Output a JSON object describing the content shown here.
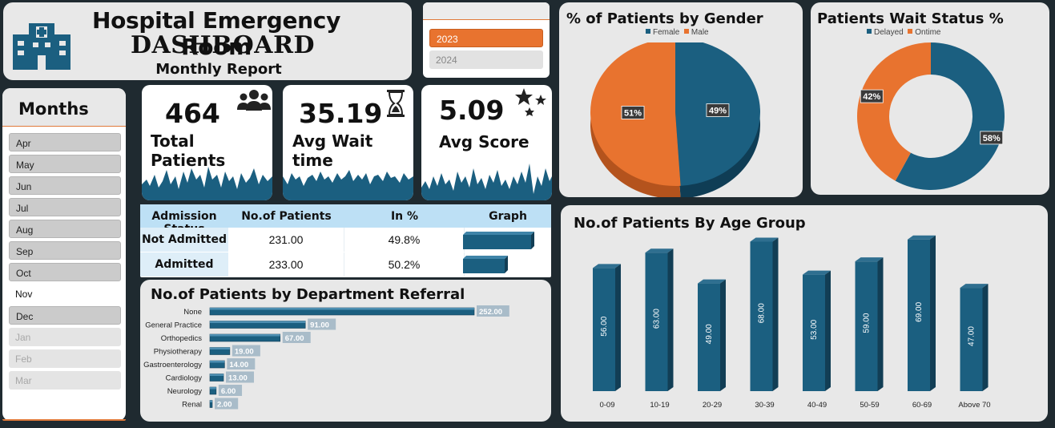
{
  "header": {
    "title": "Hospital Emergency Room",
    "subtitle": "DASHBOARD",
    "caption": "Monthly Report",
    "logo_icon": "hospital-building-icon"
  },
  "years": {
    "options": [
      {
        "label": "2023",
        "state": "selected"
      },
      {
        "label": "2024",
        "state": "unselected"
      }
    ]
  },
  "months": {
    "title": "Months",
    "items": [
      {
        "label": "Apr",
        "state": "on"
      },
      {
        "label": "May",
        "state": "on"
      },
      {
        "label": "Jun",
        "state": "on"
      },
      {
        "label": "Jul",
        "state": "on"
      },
      {
        "label": "Aug",
        "state": "on"
      },
      {
        "label": "Sep",
        "state": "on"
      },
      {
        "label": "Oct",
        "state": "on"
      },
      {
        "label": "Nov",
        "state": "selected"
      },
      {
        "label": "Dec",
        "state": "on"
      },
      {
        "label": "Jan",
        "state": "off"
      },
      {
        "label": "Feb",
        "state": "off"
      },
      {
        "label": "Mar",
        "state": "off"
      }
    ]
  },
  "kpis": {
    "total_patients": {
      "value": "464",
      "label": "Total Patients",
      "icon": "people-icon"
    },
    "avg_wait": {
      "value": "35.19",
      "label": "Avg Wait time",
      "icon": "hourglass-icon"
    },
    "avg_score": {
      "value": "5.09",
      "label": "Avg Score",
      "icon": "stars-icon"
    }
  },
  "admission": {
    "headers": [
      "Admission Status",
      "No.of Patients",
      "In %",
      "Graph"
    ],
    "rows": [
      {
        "status": "Not Admitted",
        "patients": "231.00",
        "pct": "49.8%",
        "share": 0.498
      },
      {
        "status": "Admitted",
        "patients": "233.00",
        "pct": "50.2%",
        "share": 0.502
      }
    ]
  },
  "colors": {
    "primary_blue": "#1b5f80",
    "accent_orange": "#e8732f",
    "dark_navy": "#1f2a30"
  },
  "chart_data": [
    {
      "id": "department",
      "type": "bar",
      "orientation": "horizontal",
      "title": "No.of Patients by Department Referral",
      "categories": [
        "None",
        "General Practice",
        "Orthopedics",
        "Physiotherapy",
        "Gastroenterology",
        "Cardiology",
        "Neurology",
        "Renal"
      ],
      "values": [
        252,
        91,
        67,
        19,
        14,
        13,
        6,
        2
      ],
      "value_labels": [
        "252.00",
        "91.00",
        "67.00",
        "19.00",
        "14.00",
        "13.00",
        "6.00",
        "2.00"
      ]
    },
    {
      "id": "gender",
      "type": "pie",
      "title": "% of Patients by Gender",
      "legend": [
        "Female",
        "Male"
      ],
      "values": [
        49,
        51
      ],
      "labels": [
        "49%",
        "51%"
      ],
      "legend_position": "top"
    },
    {
      "id": "wait",
      "type": "pie",
      "donut": true,
      "title": "Patients Wait Status %",
      "legend": [
        "Delayed",
        "Ontime"
      ],
      "values": [
        58,
        42
      ],
      "labels": [
        "58%",
        "42%"
      ],
      "legend_position": "top"
    },
    {
      "id": "age",
      "type": "bar",
      "title": "No.of Patients By Age Group",
      "categories": [
        "0-09",
        "10-19",
        "20-29",
        "30-39",
        "40-49",
        "50-59",
        "60-69",
        "Above 70"
      ],
      "values": [
        56,
        63,
        49,
        68,
        53,
        59,
        69,
        47
      ],
      "value_labels": [
        "56.00",
        "63.00",
        "49.00",
        "68.00",
        "53.00",
        "59.00",
        "69.00",
        "47.00"
      ]
    }
  ]
}
